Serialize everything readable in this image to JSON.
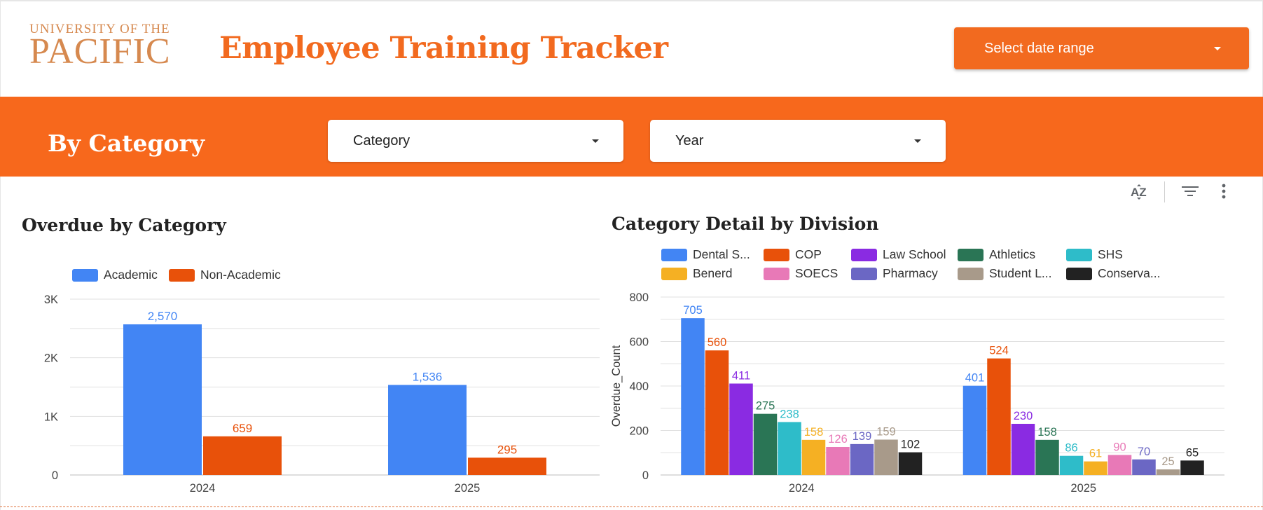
{
  "header": {
    "logo_top": "UNIVERSITY OF THE",
    "logo_main": "PACIFIC",
    "title": "Employee Training Tracker",
    "date_range_label": "Select date range"
  },
  "filter_bar": {
    "title": "By Category",
    "category_label": "Category",
    "year_label": "Year"
  },
  "toolbar": {
    "sort_icon": "sort-az-icon",
    "filter_icon": "filter-icon",
    "more_icon": "more-vert-icon"
  },
  "colors": {
    "brand": "#f26a1f",
    "academic": "#4285f4",
    "non_academic": "#e8510a"
  },
  "chart_data": [
    {
      "type": "bar",
      "title": "Overdue by Category",
      "categories": [
        "2024",
        "2025"
      ],
      "series": [
        {
          "name": "Academic",
          "color": "#4285f4",
          "values": [
            2570,
            1536
          ],
          "labels": [
            "2,570",
            "1,536"
          ]
        },
        {
          "name": "Non-Academic",
          "color": "#e8510a",
          "values": [
            659,
            295
          ],
          "labels": [
            "659",
            "295"
          ]
        }
      ],
      "ylim": [
        0,
        3000
      ],
      "yticks": [
        0,
        1000,
        2000,
        3000
      ],
      "ytick_labels": [
        "0",
        "1K",
        "2K",
        "3K"
      ],
      "ylabel": "",
      "xlabel": "",
      "grid": true,
      "legend": "top-left"
    },
    {
      "type": "bar",
      "title": "Category Detail by Division",
      "categories": [
        "2024",
        "2025"
      ],
      "series": [
        {
          "name": "Dental S...",
          "color": "#4285f4",
          "values": [
            705,
            401
          ]
        },
        {
          "name": "COP",
          "color": "#e8510a",
          "values": [
            560,
            524
          ]
        },
        {
          "name": "Law School",
          "color": "#8a2be2",
          "values": [
            411,
            230
          ]
        },
        {
          "name": "Athletics",
          "color": "#2a7555",
          "values": [
            275,
            158
          ]
        },
        {
          "name": "SHS",
          "color": "#2ebcc9",
          "values": [
            238,
            86
          ]
        },
        {
          "name": "Benerd",
          "color": "#f5b023",
          "values": [
            158,
            61
          ]
        },
        {
          "name": "SOECS",
          "color": "#e879b7",
          "values": [
            126,
            90
          ]
        },
        {
          "name": "Pharmacy",
          "color": "#6b67c4",
          "values": [
            139,
            70
          ]
        },
        {
          "name": "Student L...",
          "color": "#a89a8a",
          "values": [
            159,
            25
          ]
        },
        {
          "name": "Conserva...",
          "color": "#222222",
          "values": [
            102,
            65
          ]
        }
      ],
      "ylim": [
        0,
        800
      ],
      "yticks": [
        0,
        200,
        400,
        600,
        800
      ],
      "ytick_labels": [
        "0",
        "200",
        "400",
        "600",
        "800"
      ],
      "ylabel": "Overdue_Count",
      "xlabel": "",
      "grid": true,
      "legend": "top"
    }
  ]
}
